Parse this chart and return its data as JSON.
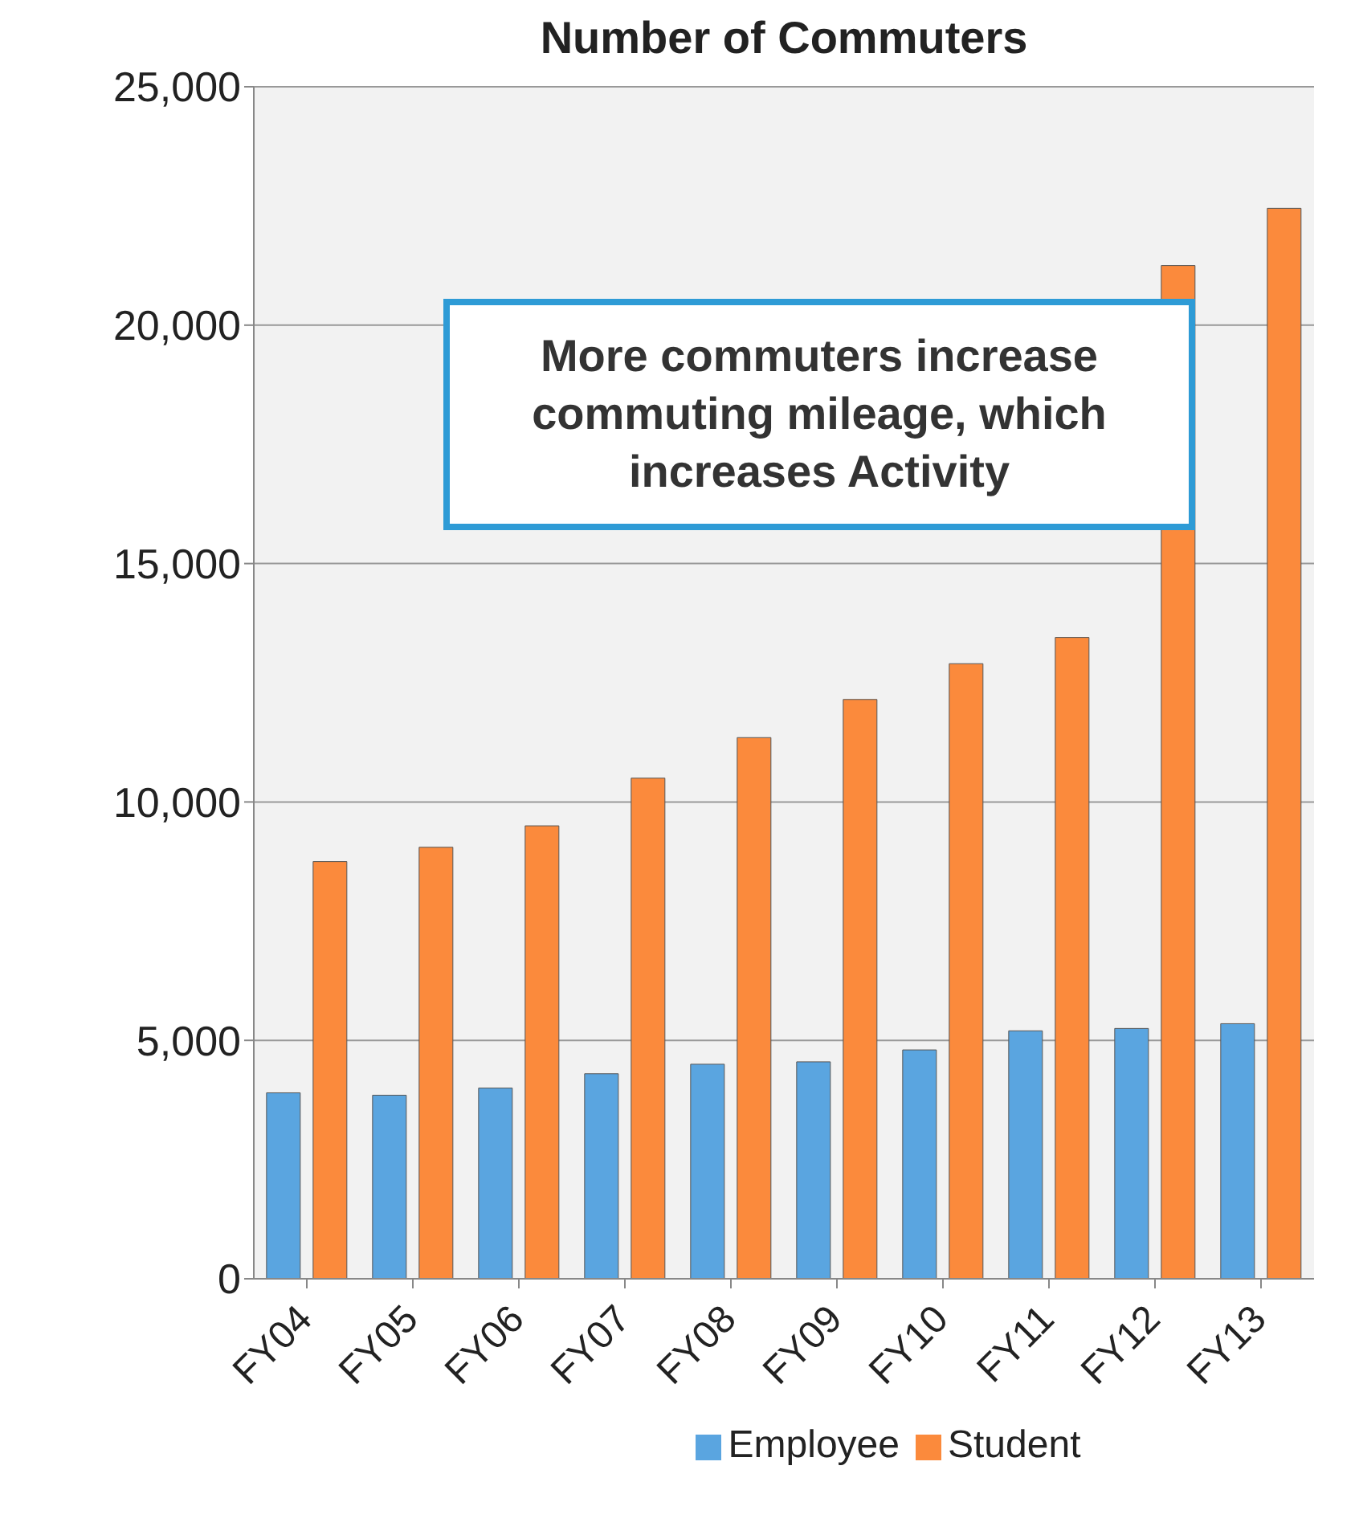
{
  "chart_data": {
    "type": "bar",
    "title": "Number of Commuters",
    "categories": [
      "FY04",
      "FY05",
      "FY06",
      "FY07",
      "FY08",
      "FY09",
      "FY10",
      "FY11",
      "FY12",
      "FY13"
    ],
    "series": [
      {
        "name": "Employee",
        "color": "#5aa5e0",
        "values": [
          3900,
          3850,
          4000,
          4300,
          4500,
          4550,
          4800,
          5200,
          5250,
          5350
        ]
      },
      {
        "name": "Student",
        "color": "#fb8a3c",
        "values": [
          8750,
          9050,
          9500,
          10500,
          11350,
          12150,
          12900,
          13450,
          21250,
          22450
        ]
      }
    ],
    "ylim": [
      0,
      25000
    ],
    "yticks": [
      0,
      {
        "value": 5000,
        "label": "5,000"
      },
      {
        "value": 10000,
        "label": "10,000"
      },
      {
        "value": 15000,
        "label": "15,000"
      },
      {
        "value": 20000,
        "label": "20,000"
      },
      {
        "value": 25000,
        "label": "25,000"
      }
    ],
    "grid": "y",
    "legend": "bottom",
    "annotations": [
      "More commuters increase commuting mileage, which increases Activity"
    ]
  }
}
